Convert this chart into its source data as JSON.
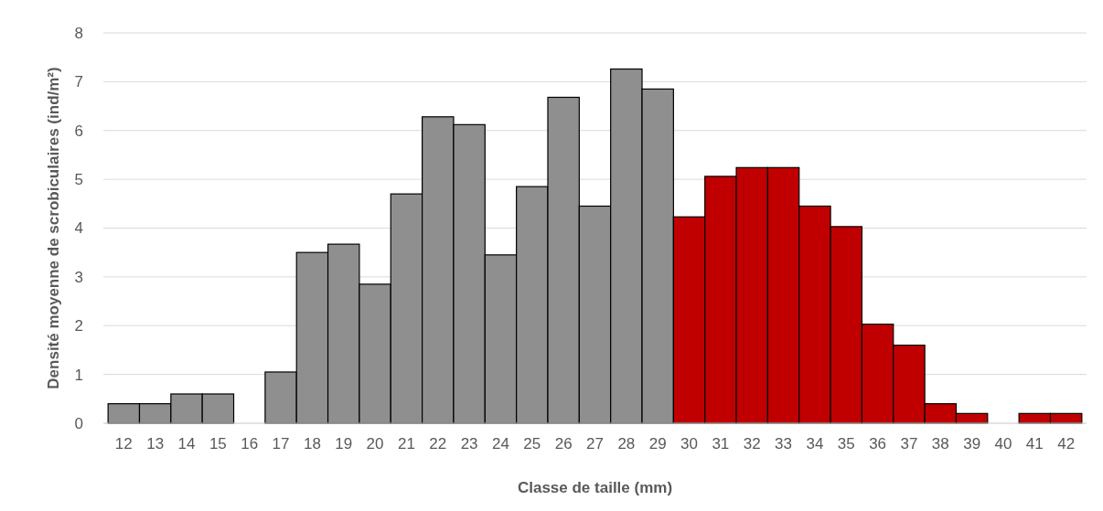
{
  "chart_data": {
    "type": "bar",
    "xlabel": "Classe de taille (mm)",
    "ylabel": "Densité moyenne de scrobiculaires (ind/m²)",
    "categories": [
      "12",
      "13",
      "14",
      "15",
      "16",
      "17",
      "18",
      "19",
      "20",
      "21",
      "22",
      "23",
      "24",
      "25",
      "26",
      "27",
      "28",
      "29",
      "30",
      "31",
      "32",
      "33",
      "34",
      "35",
      "36",
      "37",
      "38",
      "39",
      "40",
      "41",
      "42"
    ],
    "values": [
      0.4,
      0.4,
      0.6,
      0.6,
      0,
      1.05,
      3.5,
      3.67,
      2.85,
      4.7,
      6.28,
      6.12,
      3.45,
      4.85,
      6.68,
      4.45,
      7.26,
      6.85,
      4.23,
      5.06,
      5.24,
      5.24,
      4.45,
      4.03,
      2.03,
      1.6,
      0.4,
      0.2,
      0,
      0.2,
      0.2
    ],
    "colors": [
      "#8f8f8f",
      "#8f8f8f",
      "#8f8f8f",
      "#8f8f8f",
      "#8f8f8f",
      "#8f8f8f",
      "#8f8f8f",
      "#8f8f8f",
      "#8f8f8f",
      "#8f8f8f",
      "#8f8f8f",
      "#8f8f8f",
      "#8f8f8f",
      "#8f8f8f",
      "#8f8f8f",
      "#8f8f8f",
      "#8f8f8f",
      "#8f8f8f",
      "#c00000",
      "#c00000",
      "#c00000",
      "#c00000",
      "#c00000",
      "#c00000",
      "#c00000",
      "#c00000",
      "#c00000",
      "#c00000",
      "#c00000",
      "#c00000",
      "#c00000"
    ],
    "ylim": [
      0,
      8
    ],
    "yticks": [
      0,
      1,
      2,
      3,
      4,
      5,
      6,
      7,
      8
    ],
    "grid": "y"
  }
}
